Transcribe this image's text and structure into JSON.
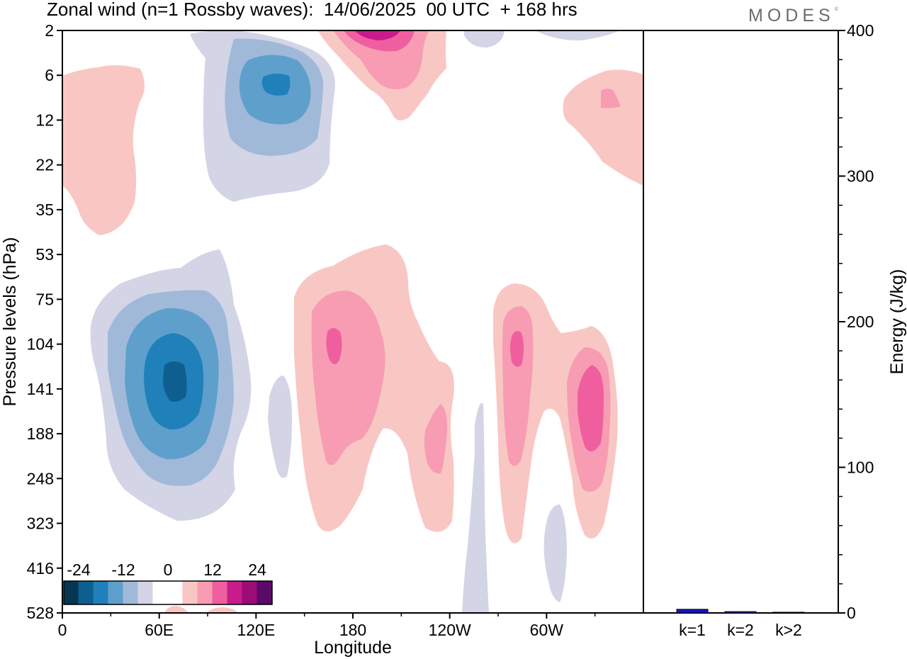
{
  "title": "Zonal wind (n=1 Rossby waves):  14/06/2025  00 UTC  + 168 hrs",
  "brand": "MODES",
  "brand_mark": "©",
  "chart_data": [
    {
      "type": "heatmap",
      "title": "Zonal wind (n=1 Rossby waves):  14/06/2025  00 UTC  + 168 hrs",
      "xlabel": "Longitude",
      "ylabel": "Pressure levels (hPa)",
      "x_ticks": [
        "0",
        "60E",
        "120E",
        "180",
        "120W",
        "60W"
      ],
      "x_tick_degrees": [
        0,
        60,
        120,
        180,
        240,
        300
      ],
      "xlim": [
        0,
        360
      ],
      "y_ticks": [
        "2",
        "6",
        "12",
        "22",
        "35",
        "53",
        "75",
        "104",
        "141",
        "188",
        "248",
        "323",
        "416",
        "528"
      ],
      "y_scale": "level index (top to bottom)",
      "colorbar": {
        "labels": [
          "-24",
          "-12",
          "0",
          "12",
          "24"
        ],
        "colors": [
          "#08354f",
          "#0e5e8f",
          "#2080ba",
          "#5f9fcc",
          "#a1b9d9",
          "#d3d4e6",
          "#ffffff",
          "#ffffff",
          "#f9c7c3",
          "#f79cb3",
          "#ef5fa0",
          "#c91b8c",
          "#9b0c77",
          "#5a0a68"
        ],
        "placement": "bottom-left"
      },
      "features": [
        {
          "name": "easterly core 60E-75E",
          "center_lon": 70,
          "center_level": 141,
          "min_value": -18
        },
        {
          "name": "easterly core 130E upper",
          "center_lon": 130,
          "center_level": 8,
          "min_value": -15
        },
        {
          "name": "westerly 170E",
          "center_lon": 172,
          "center_level": 104,
          "max_value": 11
        },
        {
          "name": "westerly 60W",
          "center_lon": 287,
          "center_level": 104,
          "max_value": 11
        },
        {
          "name": "westerly 30W",
          "center_lon": 333,
          "center_level": 141,
          "max_value": 11
        },
        {
          "name": "westerly 200E upper",
          "center_lon": 195,
          "center_level": 2,
          "max_value": 15
        }
      ]
    },
    {
      "type": "bar",
      "categories": [
        "k=1",
        "k=2",
        "k>2"
      ],
      "values": [
        2.5,
        0.9,
        0.4
      ],
      "ylabel": "Energy (J/kg)",
      "ylim": [
        0,
        400
      ],
      "y_ticks": [
        "0",
        "100",
        "200",
        "300",
        "400"
      ],
      "bar_color": "#1414c8"
    }
  ]
}
